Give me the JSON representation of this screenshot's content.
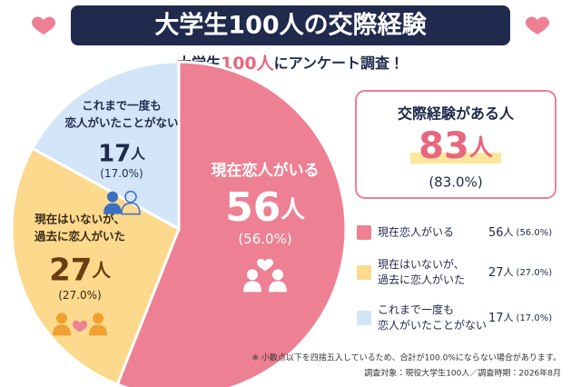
{
  "title": "大学生100人の交際経験",
  "subtitle": {
    "before": "大学生",
    "highlight": "100人",
    "after": "にアンケート調査！"
  },
  "chart_data": {
    "type": "pie",
    "categories": [
      [
        "現在恋人がいる"
      ],
      [
        "現在はいないが、",
        "過去に恋人がいた"
      ],
      [
        "これまで一度も",
        "恋人がいたことがない"
      ]
    ],
    "values": [
      56,
      27,
      17
    ],
    "unit": "人",
    "percent_labels": [
      "(56.0%)",
      "(27.0%)",
      "(17.0%)"
    ],
    "colors": [
      "#ee8093",
      "#fcd98c",
      "#d3e5f8"
    ]
  },
  "callout": {
    "title": "交際経験がある人",
    "value": 83,
    "unit": "人",
    "percent_label": "(83.0%)"
  },
  "notes": [
    "※ 小数点以下を四捨五入しているため、合計が100.0%にならない場合があります。",
    "調査対象：現役大学生100人／調査時期：2026年8月"
  ]
}
